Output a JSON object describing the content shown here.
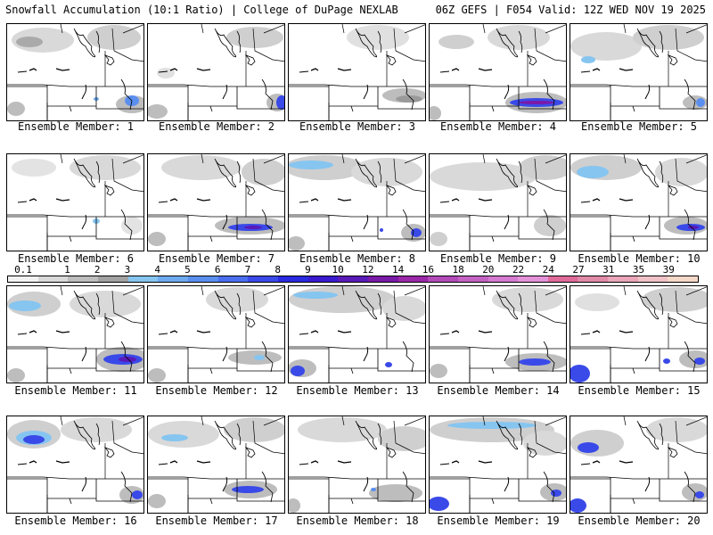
{
  "header": {
    "left_title": "Snowfall Accumulation (10:1 Ratio) | College of DuPage NEXLAB",
    "right_title": "06Z GEFS | F054 Valid: 12Z WED NOV 19 2025"
  },
  "colorbar": {
    "ticks": [
      "0.1",
      "1",
      "2",
      "3",
      "4",
      "5",
      "6",
      "7",
      "8",
      "9",
      "10",
      "12",
      "14",
      "16",
      "18",
      "20",
      "22",
      "24",
      "27",
      "31",
      "35",
      "39"
    ],
    "colors": [
      "#f2f2f2",
      "#d9d9d9",
      "#bdbdbd",
      "#a2a2a2",
      "#86c5f0",
      "#6eaaf0",
      "#5a8ff0",
      "#4a6ef0",
      "#3a4ae8",
      "#2a2ae0",
      "#3a1ad0",
      "#5a1ab8",
      "#7a1aa8",
      "#9a28a8",
      "#b24ab8",
      "#c462c4",
      "#d47ad0",
      "#e492d8",
      "#e06a9a",
      "#e08aa8",
      "#eaa6b8",
      "#f0c2c8",
      "#f6d8c8"
    ]
  },
  "panels": [
    {
      "label": "Ensemble Member: 1"
    },
    {
      "label": "Ensemble Member: 2"
    },
    {
      "label": "Ensemble Member: 3"
    },
    {
      "label": "Ensemble Member: 4"
    },
    {
      "label": "Ensemble Member: 5"
    },
    {
      "label": "Ensemble Member: 6"
    },
    {
      "label": "Ensemble Member: 7"
    },
    {
      "label": "Ensemble Member: 8"
    },
    {
      "label": "Ensemble Member: 9"
    },
    {
      "label": "Ensemble Member: 10"
    },
    {
      "label": "Ensemble Member: 11"
    },
    {
      "label": "Ensemble Member: 12"
    },
    {
      "label": "Ensemble Member: 13"
    },
    {
      "label": "Ensemble Member: 14"
    },
    {
      "label": "Ensemble Member: 15"
    },
    {
      "label": "Ensemble Member: 16"
    },
    {
      "label": "Ensemble Member: 17"
    },
    {
      "label": "Ensemble Member: 18"
    },
    {
      "label": "Ensemble Member: 19"
    },
    {
      "label": "Ensemble Member: 20"
    }
  ]
}
